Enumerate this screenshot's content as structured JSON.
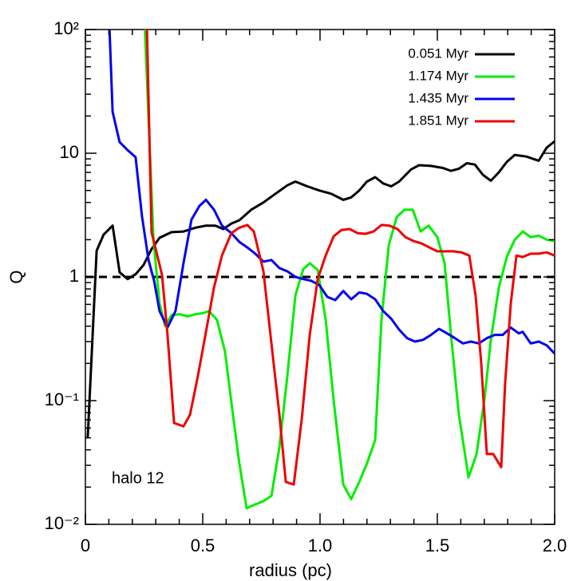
{
  "chart_data": {
    "type": "line",
    "xlabel": "radius (pc)",
    "ylabel": "Q",
    "annotation": "halo 12",
    "xlim": [
      0,
      2
    ],
    "xticks": [
      0,
      0.5,
      {
        "value": 1,
        "label": "1.0"
      },
      {
        "value": 1.5,
        "label": "1.5"
      },
      {
        "value": 2,
        "label": "2.0"
      }
    ],
    "ylim": [
      0.01,
      100
    ],
    "yscale": "log",
    "yticks": [
      {
        "value": 0.01,
        "label": "10⁻²"
      },
      {
        "value": 0.1,
        "label": "10⁻¹"
      },
      1,
      10,
      {
        "value": 100,
        "label": "10²"
      }
    ],
    "reference_line": {
      "y": 1,
      "style": "dashed",
      "color": "#000000"
    },
    "legend": "upper right",
    "series": [
      {
        "name": "0.051 Myr",
        "color": "#000000",
        "x": [
          0.01,
          0.048,
          0.078,
          0.116,
          0.146,
          0.18,
          0.214,
          0.248,
          0.282,
          0.316,
          0.367,
          0.418,
          0.469,
          0.514,
          0.554,
          0.588,
          0.622,
          0.656,
          0.707,
          0.759,
          0.81,
          0.861,
          0.895,
          0.946,
          0.997,
          1.048,
          1.099,
          1.133,
          1.167,
          1.2,
          1.235,
          1.269,
          1.303,
          1.337,
          1.388,
          1.422,
          1.473,
          1.524,
          1.558,
          1.592,
          1.626,
          1.66,
          1.694,
          1.728,
          1.762,
          1.796,
          1.83,
          1.88,
          1.932,
          1.966,
          2.0
        ],
        "values": [
          0.05,
          1.63,
          2.2,
          2.6,
          1.09,
          0.96,
          1.05,
          1.25,
          1.68,
          2.07,
          2.3,
          2.33,
          2.5,
          2.6,
          2.6,
          2.44,
          2.7,
          2.87,
          3.5,
          4.0,
          4.7,
          5.5,
          5.9,
          5.4,
          5.0,
          4.7,
          4.2,
          4.4,
          5.0,
          5.9,
          6.4,
          5.7,
          5.4,
          5.9,
          7.4,
          8.0,
          7.9,
          7.6,
          7.2,
          7.5,
          8.3,
          8.1,
          6.7,
          6.0,
          7.0,
          8.5,
          9.7,
          9.4,
          8.7,
          11.1,
          12.5
        ]
      },
      {
        "name": "1.174 Myr",
        "color": "#00ee00",
        "x": [
          0.25,
          0.29,
          0.316,
          0.34,
          0.367,
          0.401,
          0.435,
          0.469,
          0.503,
          0.527,
          0.561,
          0.595,
          0.629,
          0.656,
          0.687,
          0.724,
          0.759,
          0.793,
          0.827,
          0.861,
          0.895,
          0.929,
          0.956,
          0.99,
          1.024,
          1.058,
          1.099,
          1.133,
          1.167,
          1.2,
          1.235,
          1.262,
          1.293,
          1.327,
          1.361,
          1.395,
          1.429,
          1.463,
          1.5,
          1.531,
          1.558,
          1.592,
          1.633,
          1.667,
          1.701,
          1.728,
          1.762,
          1.796,
          1.83,
          1.864,
          1.898,
          1.932,
          1.966,
          2.0
        ],
        "values": [
          150,
          2.0,
          0.61,
          0.4,
          0.49,
          0.5,
          0.48,
          0.5,
          0.51,
          0.53,
          0.45,
          0.25,
          0.077,
          0.031,
          0.0135,
          0.0145,
          0.0154,
          0.017,
          0.042,
          0.16,
          0.71,
          1.16,
          1.29,
          1.14,
          0.45,
          0.1,
          0.021,
          0.016,
          0.022,
          0.031,
          0.048,
          0.45,
          1.8,
          3.05,
          3.5,
          3.5,
          2.33,
          2.6,
          2.1,
          1.29,
          0.34,
          0.077,
          0.024,
          0.037,
          0.103,
          0.31,
          0.82,
          1.45,
          2.0,
          2.33,
          2.1,
          2.16,
          2.0,
          1.95
        ]
      },
      {
        "name": "1.435 Myr",
        "color": "#0000ee",
        "x": [
          0.102,
          0.116,
          0.146,
          0.18,
          0.214,
          0.241,
          0.269,
          0.293,
          0.316,
          0.35,
          0.384,
          0.418,
          0.452,
          0.486,
          0.514,
          0.548,
          0.582,
          0.622,
          0.656,
          0.69,
          0.724,
          0.759,
          0.793,
          0.827,
          0.861,
          0.895,
          0.929,
          0.963,
          0.997,
          1.031,
          1.065,
          1.099,
          1.133,
          1.167,
          1.2,
          1.235,
          1.269,
          1.303,
          1.337,
          1.371,
          1.405,
          1.439,
          1.473,
          1.507,
          1.541,
          1.575,
          1.609,
          1.643,
          1.677,
          1.711,
          1.745,
          1.779,
          1.813,
          1.847,
          1.864,
          1.898,
          1.932,
          1.966,
          2.0
        ],
        "values": [
          110,
          21.6,
          12.3,
          10.6,
          9.3,
          3.1,
          1.37,
          0.93,
          0.53,
          0.39,
          0.53,
          1.29,
          2.9,
          3.75,
          4.2,
          3.5,
          2.6,
          2.26,
          1.92,
          1.73,
          1.54,
          1.33,
          1.37,
          1.18,
          1.11,
          1.0,
          0.96,
          0.93,
          0.86,
          0.69,
          0.65,
          0.77,
          0.66,
          0.75,
          0.73,
          0.66,
          0.53,
          0.46,
          0.375,
          0.32,
          0.3,
          0.31,
          0.34,
          0.38,
          0.35,
          0.32,
          0.29,
          0.3,
          0.29,
          0.32,
          0.34,
          0.34,
          0.39,
          0.35,
          0.36,
          0.29,
          0.3,
          0.28,
          0.24
        ]
      },
      {
        "name": "1.851 Myr",
        "color": "#ee0000",
        "x": [
          0.262,
          0.282,
          0.306,
          0.327,
          0.35,
          0.378,
          0.418,
          0.446,
          0.48,
          0.514,
          0.548,
          0.582,
          0.622,
          0.656,
          0.69,
          0.718,
          0.759,
          0.793,
          0.827,
          0.854,
          0.888,
          0.922,
          0.956,
          0.99,
          1.024,
          1.058,
          1.092,
          1.126,
          1.16,
          1.194,
          1.228,
          1.262,
          1.296,
          1.33,
          1.364,
          1.398,
          1.432,
          1.466,
          1.5,
          1.534,
          1.568,
          1.602,
          1.636,
          1.663,
          1.687,
          1.711,
          1.738,
          1.772,
          1.789,
          1.813,
          1.837,
          1.864,
          1.898,
          1.932,
          1.966,
          2.0
        ],
        "values": [
          110,
          2.3,
          1.5,
          1.03,
          0.34,
          0.066,
          0.062,
          0.077,
          0.16,
          0.36,
          0.82,
          1.49,
          2.26,
          2.5,
          2.63,
          2.33,
          1.11,
          0.29,
          0.077,
          0.022,
          0.021,
          0.071,
          0.34,
          0.96,
          1.49,
          2.13,
          2.4,
          2.44,
          2.26,
          2.23,
          2.33,
          2.63,
          2.6,
          2.44,
          2.1,
          1.95,
          1.87,
          1.73,
          1.61,
          1.61,
          1.61,
          1.58,
          1.49,
          0.71,
          0.2,
          0.037,
          0.037,
          0.029,
          0.14,
          0.61,
          1.49,
          1.45,
          1.54,
          1.54,
          1.58,
          1.49
        ]
      }
    ]
  }
}
